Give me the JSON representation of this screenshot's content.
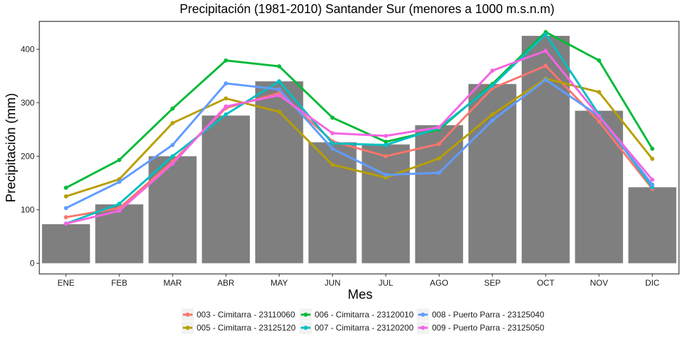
{
  "chart_data": {
    "type": "bar+line",
    "title": "Precipitación (1981-2010) Santander Sur (menores a 1000 m.s.n.m)",
    "xlabel": "Mes",
    "ylabel": "Precipitación (mm)",
    "categories": [
      "ENE",
      "FEB",
      "MAR",
      "ABR",
      "MAY",
      "JUN",
      "JUL",
      "AGO",
      "SEP",
      "OCT",
      "NOV",
      "DIC"
    ],
    "yticks": [
      0,
      100,
      200,
      300,
      400
    ],
    "ylim": [
      -20,
      452
    ],
    "grid": false,
    "legend_position": "bottom",
    "bars": {
      "color": "#7f7f7f",
      "values": [
        73,
        110,
        200,
        276,
        340,
        226,
        222,
        258,
        335,
        425,
        285,
        142
      ]
    },
    "series": [
      {
        "name": "003 - Cimitarra - 23110060",
        "color": "#F8766D",
        "values": [
          86,
          103,
          190,
          290,
          318,
          228,
          200,
          223,
          327,
          369,
          265,
          139
        ]
      },
      {
        "name": "005 - Cimitarra - 23125120",
        "color": "#B79F00",
        "values": [
          125,
          157,
          262,
          308,
          283,
          184,
          160,
          196,
          278,
          345,
          320,
          195
        ]
      },
      {
        "name": "006 - Cimitarra - 23120010",
        "color": "#00BA38",
        "values": [
          141,
          193,
          289,
          379,
          368,
          272,
          227,
          250,
          335,
          432,
          379,
          214
        ]
      },
      {
        "name": "007 - Cimitarra - 23120200",
        "color": "#00BFC4",
        "values": [
          74,
          111,
          200,
          278,
          340,
          224,
          221,
          253,
          332,
          428,
          278,
          142
        ]
      },
      {
        "name": "008 - Puerto Parra - 23125040",
        "color": "#619CFF",
        "values": [
          103,
          152,
          221,
          336,
          325,
          214,
          165,
          169,
          267,
          343,
          275,
          147
        ]
      },
      {
        "name": "009 - Puerto Parra - 23125050",
        "color": "#F564E3",
        "values": [
          74,
          98,
          186,
          293,
          314,
          243,
          238,
          254,
          360,
          397,
          275,
          156
        ]
      }
    ]
  }
}
